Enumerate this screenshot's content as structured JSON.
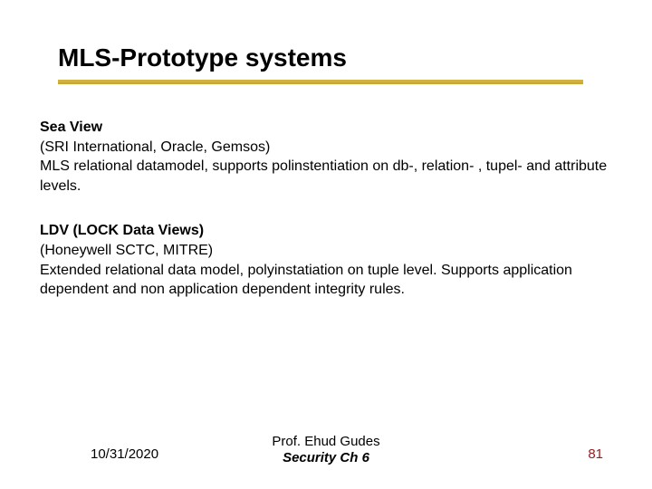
{
  "title": "MLS-Prototype systems",
  "underline_color": "#d3b03f",
  "page_number_color": "#9a1b1e",
  "body": {
    "section1": {
      "heading": "Sea View",
      "line1": "(SRI International, Oracle, Gemsos)",
      "line2": "MLS relational datamodel, supports polinstentiation on db-, relation- , tupel- and attribute levels."
    },
    "section2": {
      "heading": "LDV (LOCK Data Views)",
      "line1": "(Honeywell SCTC, MITRE)",
      "line2": "Extended relational data model, polyinstatiation on tuple level. Supports application dependent and non application dependent integrity rules."
    }
  },
  "footer": {
    "date": "10/31/2020",
    "center_line1": "Prof. Ehud Gudes",
    "center_line2": "Security  Ch 6",
    "page": "81"
  }
}
